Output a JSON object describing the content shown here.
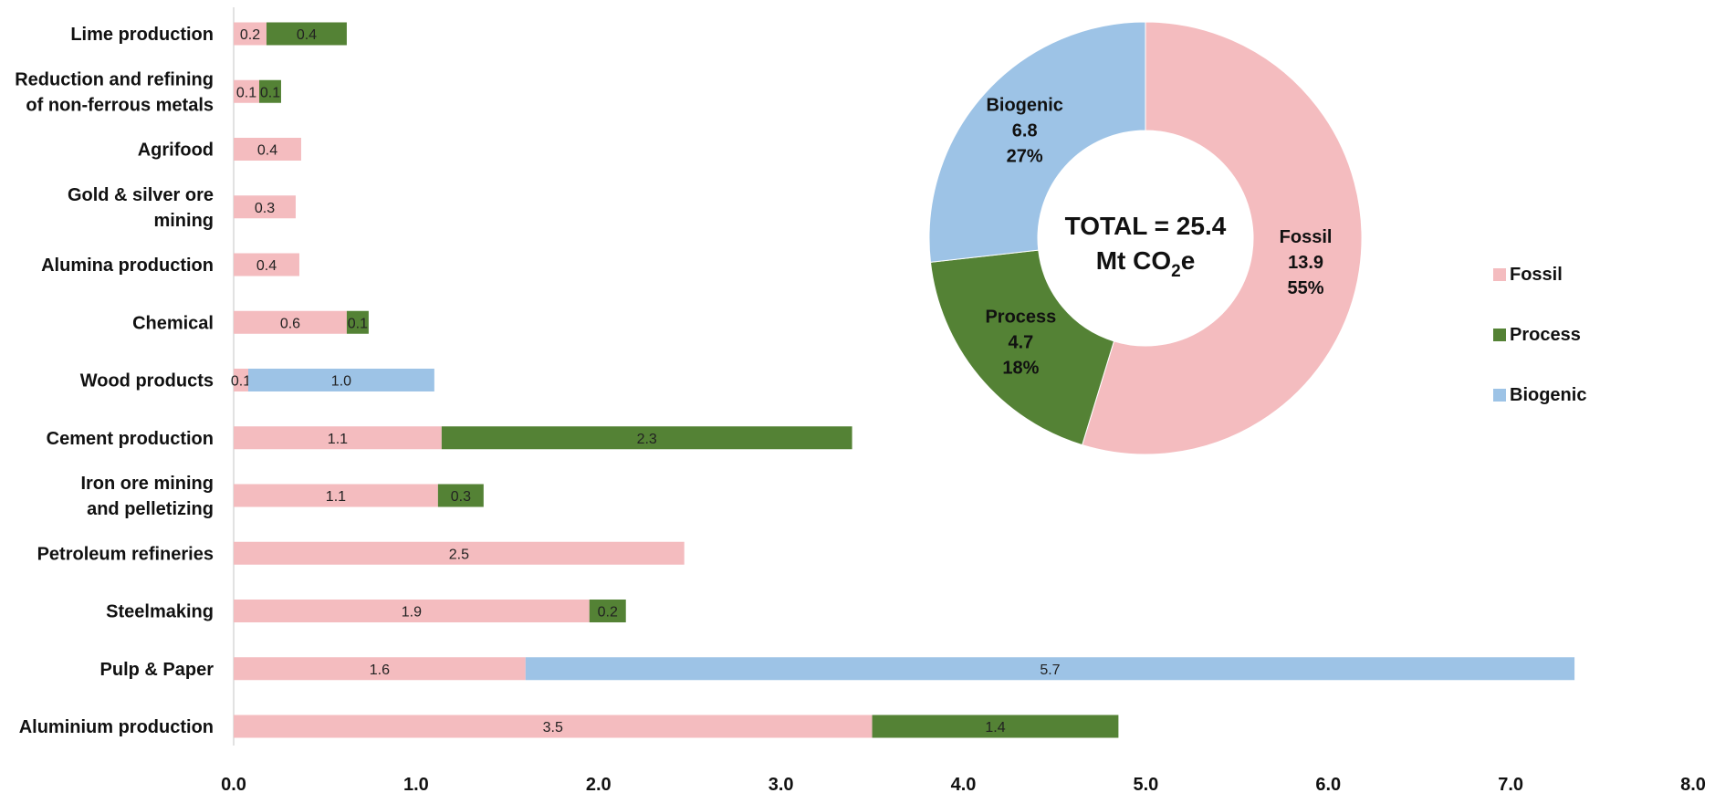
{
  "chart_data": [
    {
      "type": "bar",
      "orientation": "horizontal",
      "stacked": true,
      "categories": [
        "Lime production",
        "Reduction and refining\nof non-ferrous metals",
        "Agrifood",
        "Gold & silver ore\nmining",
        "Alumina production",
        "Chemical",
        "Wood products",
        "Cement production",
        "Iron ore mining\nand pelletizing",
        "Petroleum refineries",
        "Steelmaking",
        "Pulp & Paper",
        "Aluminium production"
      ],
      "series": [
        {
          "name": "Fossil",
          "color": "#f4bcbf",
          "values": [
            0.18,
            0.14,
            0.37,
            0.34,
            0.36,
            0.62,
            0.08,
            1.14,
            1.12,
            2.47,
            1.95,
            1.6,
            3.5
          ],
          "labels": [
            "0.2",
            "0.1",
            "0.4",
            "0.3",
            "0.4",
            "0.6",
            "0.1",
            "1.1",
            "1.1",
            "2.5",
            "1.9",
            "1.6",
            "3.5"
          ]
        },
        {
          "name": "Process",
          "color": "#548235",
          "values": [
            0.44,
            0.12,
            0,
            0,
            0,
            0.12,
            0,
            2.25,
            0.25,
            0,
            0.2,
            0,
            1.35
          ],
          "labels": [
            "0.4",
            "0.1",
            "",
            "",
            "",
            "0.1",
            "",
            "2.3",
            "0.3",
            "",
            "0.2",
            "",
            "1.4"
          ]
        },
        {
          "name": "Biogenic",
          "color": "#9dc3e6",
          "values": [
            0,
            0,
            0,
            0,
            0,
            0,
            1.02,
            0,
            0,
            0,
            0,
            5.75,
            0
          ],
          "labels": [
            "",
            "",
            "",
            "",
            "",
            "",
            "1.0",
            "",
            "",
            "",
            "",
            "5.7",
            ""
          ]
        }
      ],
      "xlim": [
        0,
        8
      ],
      "xticks": [
        "0.0",
        "1.0",
        "2.0",
        "3.0",
        "4.0",
        "5.0",
        "6.0",
        "7.0",
        "8.0"
      ],
      "legend_position": "right"
    },
    {
      "type": "pie",
      "donut": true,
      "center_label": "TOTAL = 25.4",
      "center_unit_prefix": "Mt CO",
      "center_unit_sub": "2",
      "center_unit_suffix": "e",
      "slices": [
        {
          "name": "Fossil",
          "value": 13.9,
          "value_label": "13.9",
          "percent_label": "55%",
          "color": "#f4bcbf"
        },
        {
          "name": "Process",
          "value": 4.7,
          "value_label": "4.7",
          "percent_label": "18%",
          "color": "#548235"
        },
        {
          "name": "Biogenic",
          "value": 6.8,
          "value_label": "6.8",
          "percent_label": "27%",
          "color": "#9dc3e6"
        }
      ]
    }
  ]
}
